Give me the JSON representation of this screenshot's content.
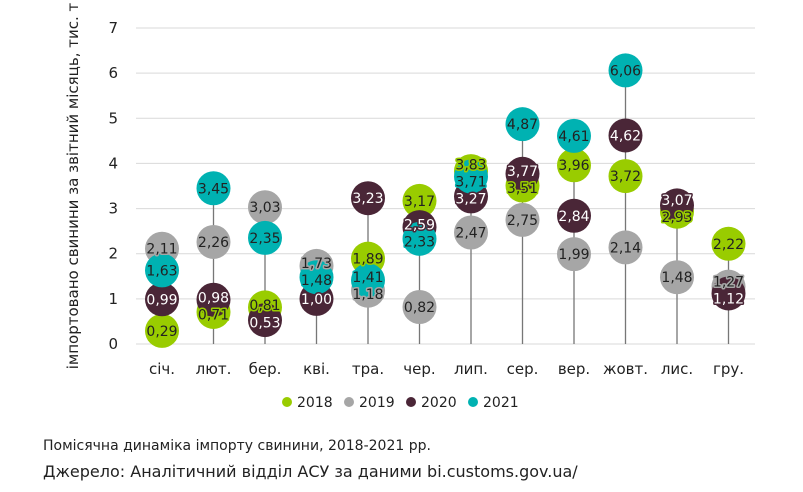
{
  "chart_data": {
    "type": "scatter",
    "subtype": "dot-plot",
    "ylabel": "імпортовано свинини за звітний місяць, тис. т",
    "ylim": [
      0,
      7
    ],
    "yticks": [
      "0",
      "1",
      "2",
      "3",
      "4",
      "5",
      "6",
      "7"
    ],
    "grid": true,
    "legend_position": "bottom",
    "categories": [
      "січ.",
      "лют.",
      "бер.",
      "кві.",
      "тра.",
      "чер.",
      "лип.",
      "сер.",
      "вер.",
      "жовт.",
      "лис.",
      "гру."
    ],
    "series": [
      {
        "name": "2018",
        "color": "#99CC00",
        "text_color": "#222222",
        "values": [
          0.29,
          0.71,
          0.81,
          null,
          1.89,
          3.17,
          3.83,
          3.51,
          3.96,
          3.72,
          2.93,
          2.22
        ]
      },
      {
        "name": "2019",
        "color": "#A6A6A6",
        "text_color": "#222222",
        "values": [
          2.11,
          2.26,
          3.03,
          1.73,
          1.18,
          0.82,
          2.47,
          2.75,
          1.99,
          2.14,
          1.48,
          1.27
        ]
      },
      {
        "name": "2020",
        "color": "#4A2637",
        "text_color": "#FFFFFF",
        "values": [
          0.99,
          0.98,
          0.53,
          1.0,
          3.23,
          2.59,
          3.27,
          3.77,
          2.84,
          4.62,
          3.07,
          1.12
        ]
      },
      {
        "name": "2021",
        "color": "#00B2B2",
        "text_color": "#222222",
        "values": [
          1.63,
          3.45,
          2.35,
          1.48,
          1.41,
          2.33,
          3.71,
          4.87,
          4.61,
          6.06,
          null,
          null
        ]
      }
    ]
  },
  "caption": "Помісячна динаміка імпорту свинини, 2018-2021 рр.",
  "source": "Джерело: Аналітичний відділ АСУ за даними bi.customs.gov.ua/"
}
